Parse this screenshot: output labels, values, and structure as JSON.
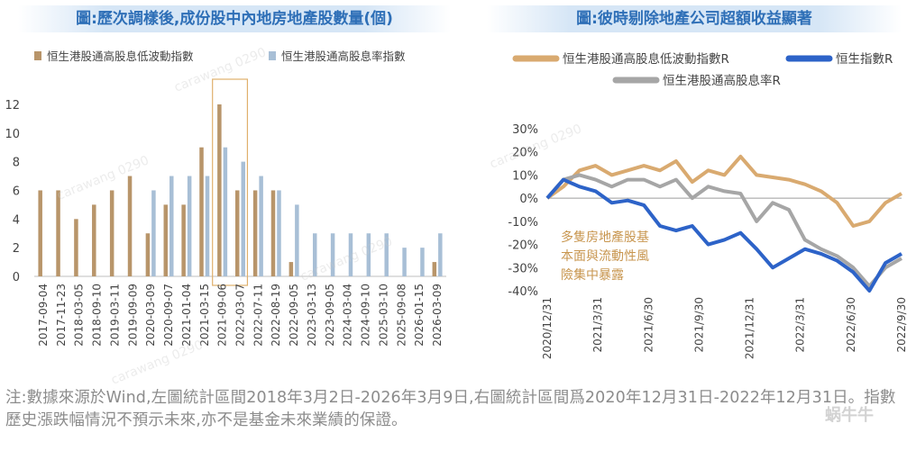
{
  "left_chart": {
    "title": "圖:歷次調樣後,成份股中內地房地產股數量(個)",
    "chart_data": {
      "type": "bar",
      "categories": [
        "2017-09-04",
        "2017-11-23",
        "2018-03-05",
        "2018-09-10",
        "2019-03-11",
        "2019-09-09",
        "2020-03-09",
        "2020-09-07",
        "2021-01-04",
        "2021-03-15",
        "2021-09-06",
        "2022-03-07",
        "2022-07-11",
        "2022-08-19",
        "2022-09-05",
        "2023-03-13",
        "2023-09-05",
        "2024-03-04",
        "2024-09-10",
        "2025-03-10",
        "2025-09-08",
        "2026-01-15",
        "2026-03-09"
      ],
      "series": [
        {
          "name": "恒生港股通高股息低波動指數",
          "color": "#b8956a",
          "values": [
            6,
            6,
            4,
            5,
            6,
            7,
            3,
            5,
            5,
            9,
            12,
            6,
            6,
            6,
            1,
            0,
            0,
            0,
            0,
            0,
            0,
            0,
            1
          ]
        },
        {
          "name": "恒生港股通高股息率指數",
          "color": "#a8bfd6",
          "values": [
            0,
            0,
            0,
            0,
            0,
            0,
            6,
            7,
            7,
            7,
            9,
            8,
            7,
            6,
            5,
            3,
            3,
            3,
            3,
            3,
            2,
            2,
            3
          ]
        }
      ],
      "yticks": [
        "0",
        "2",
        "4",
        "6",
        "8",
        "10",
        "12"
      ],
      "ylim": [
        0,
        13
      ],
      "highlight_categories": [
        "2021-09-06",
        "2022-03-07"
      ]
    }
  },
  "right_chart": {
    "title": "圖:彼時剔除地產公司超額收益顯著",
    "annotation": [
      "多隻房地產股基",
      "本面與流動性風",
      "險集中暴露"
    ],
    "chart_data": {
      "type": "line",
      "x_ticks": [
        "2020/12/31",
        "2021/3/31",
        "2021/6/30",
        "2021/9/30",
        "2021/12/31",
        "2022/3/31",
        "2022/6/30",
        "2022/9/30"
      ],
      "yticks": [
        "-40%",
        "-30%",
        "-20%",
        "-10%",
        "0%",
        "10%",
        "20%",
        "30%"
      ],
      "ylim": [
        -40,
        30
      ],
      "x": [
        "2020/12/31",
        "2021/1/31",
        "2021/2/28",
        "2021/3/31",
        "2021/4/30",
        "2021/5/31",
        "2021/6/30",
        "2021/7/31",
        "2021/8/31",
        "2021/9/30",
        "2021/10/31",
        "2021/11/30",
        "2021/12/31",
        "2022/1/31",
        "2022/2/28",
        "2022/3/31",
        "2022/4/30",
        "2022/5/31",
        "2022/6/30",
        "2022/7/31",
        "2022/8/31",
        "2022/9/30",
        "2022/10/15"
      ],
      "series": [
        {
          "name": "恒生港股通高股息低波動指數R",
          "color": "#d9aa70",
          "values": [
            0,
            5,
            12,
            14,
            10,
            12,
            14,
            12,
            16,
            7,
            12,
            10,
            18,
            10,
            9,
            8,
            6,
            3,
            -2,
            -12,
            -10,
            -2,
            2
          ]
        },
        {
          "name": "恒生指數R",
          "color": "#2d63c8",
          "values": [
            0,
            8,
            5,
            3,
            -2,
            -1,
            -3,
            -12,
            -14,
            -12,
            -20,
            -18,
            -15,
            -22,
            -30,
            -26,
            -22,
            -24,
            -27,
            -32,
            -40,
            -28,
            -24
          ]
        },
        {
          "name": "恒生港股通高股息率R",
          "color": "#a6a6a6",
          "values": [
            0,
            8,
            10,
            8,
            5,
            8,
            8,
            5,
            8,
            0,
            5,
            3,
            2,
            -10,
            -2,
            -5,
            -18,
            -22,
            -25,
            -30,
            -38,
            -30,
            -26
          ]
        }
      ]
    }
  },
  "footnote": "注:數據來源於Wind,左圖統計區間2018年3月2日-2026年3月9日,右圖統計區間爲2020年12月31日-2022年12月31日。指數歷史漲跌幅情況不預示未來,亦不是基金未來業績的保證。",
  "watermark": "carawang 0290",
  "logo_text": "蜗牛牛"
}
